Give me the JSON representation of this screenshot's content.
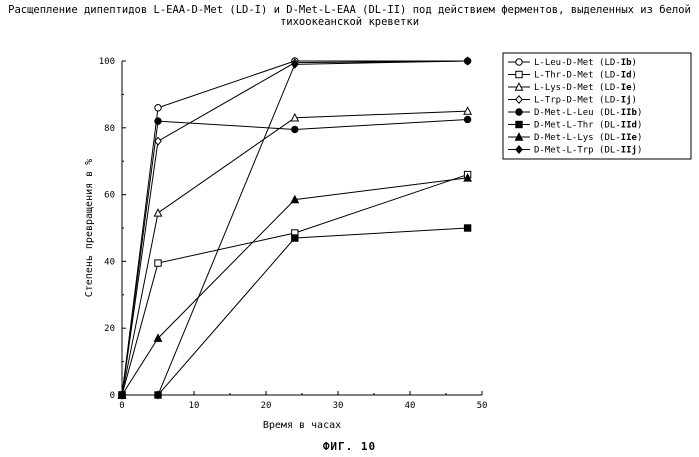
{
  "page": {
    "title_line1": "Расщепление дипептидов L-EAA-D-Met (LD-I) и D-Met-L-EAA (DL-II) под действием ферментов, выделенных из белой",
    "title_line2": "тихоокеанской креветки",
    "figure_label": "ФИГ. 10"
  },
  "chart_data": {
    "type": "line",
    "title": "Расщепление дипептидов L-EAA-D-Met (LD-I) и D-Met-L-EAA (DL-II) под действием ферментов, выделенных из белой тихоокеанской креветки",
    "xlabel": "Время в часах",
    "ylabel": "Степень превращения в %",
    "xlim": [
      0,
      50
    ],
    "ylim": [
      0,
      100
    ],
    "xticks": [
      0,
      10,
      20,
      30,
      40,
      50
    ],
    "yticks": [
      0,
      20,
      40,
      60,
      80,
      100
    ],
    "grid": false,
    "legend_position": "top-right",
    "x": [
      0,
      5,
      24,
      48
    ],
    "series": [
      {
        "name": "L-Leu-D-Met",
        "code": "LD-",
        "bold": "Ib",
        "marker": "circle-open",
        "values": [
          0,
          86,
          100,
          100
        ]
      },
      {
        "name": "L-Thr-D-Met",
        "code": "LD-",
        "bold": "Id",
        "marker": "square-open",
        "values": [
          0,
          39.5,
          48.5,
          66
        ]
      },
      {
        "name": "L-Lys-D-Met",
        "code": "LD-",
        "bold": "Ie",
        "marker": "triangle-open",
        "values": [
          0,
          54.5,
          83,
          85
        ]
      },
      {
        "name": "L-Trp-D-Met",
        "code": "LD-",
        "bold": "Ij",
        "marker": "diamond-open",
        "values": [
          0,
          76,
          99.5,
          100
        ]
      },
      {
        "name": "D-Met-L-Leu",
        "code": "DL-",
        "bold": "IIb",
        "marker": "circle-filled",
        "values": [
          0,
          82,
          79.5,
          82.5
        ]
      },
      {
        "name": "D-Met-L-Thr",
        "code": "DL-",
        "bold": "IId",
        "marker": "square-filled",
        "values": [
          0,
          0,
          47,
          50
        ]
      },
      {
        "name": "D-Met-L-Lys",
        "code": "DL-",
        "bold": "IIe",
        "marker": "triangle-filled",
        "values": [
          0,
          17,
          58.5,
          65
        ]
      },
      {
        "name": "D-Met-L-Trp",
        "code": "DL-",
        "bold": "IIj",
        "marker": "diamond-filled",
        "values": [
          0,
          0,
          99,
          100
        ]
      }
    ]
  }
}
